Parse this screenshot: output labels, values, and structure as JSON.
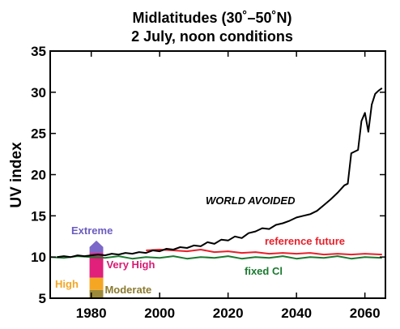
{
  "chart_data": {
    "type": "line",
    "title": "Midlatitudes (30˚–50˚N)",
    "subtitle": "2 July, noon conditions",
    "xlabel": "",
    "ylabel": "UV index",
    "xlim": [
      1968,
      2066
    ],
    "ylim": [
      5,
      35
    ],
    "xticks": [
      1980,
      2000,
      2020,
      2040,
      2060
    ],
    "yticks": [
      5,
      10,
      15,
      20,
      25,
      30,
      35
    ],
    "grid": false,
    "series": [
      {
        "name": "WORLD AVOIDED",
        "color": "#000000",
        "x": [
          1970,
          1972,
          1974,
          1976,
          1978,
          1980,
          1982,
          1984,
          1986,
          1988,
          1990,
          1992,
          1994,
          1996,
          1998,
          2000,
          2002,
          2004,
          2006,
          2008,
          2010,
          2012,
          2014,
          2016,
          2018,
          2020,
          2022,
          2024,
          2026,
          2028,
          2030,
          2032,
          2034,
          2036,
          2038,
          2040,
          2042,
          2044,
          2046,
          2048,
          2050,
          2052,
          2054,
          2055,
          2056,
          2058,
          2059,
          2060,
          2061,
          2062,
          2063,
          2064,
          2065
        ],
        "y": [
          10.0,
          10.1,
          10.0,
          10.2,
          10.1,
          10.2,
          10.3,
          10.2,
          10.4,
          10.3,
          10.5,
          10.4,
          10.6,
          10.5,
          10.8,
          10.7,
          11.0,
          10.9,
          11.2,
          11.1,
          11.4,
          11.3,
          11.8,
          11.6,
          12.1,
          12.0,
          12.5,
          12.3,
          12.9,
          13.1,
          13.5,
          13.4,
          13.9,
          14.1,
          14.4,
          14.8,
          15.0,
          15.2,
          15.6,
          16.3,
          17.0,
          17.8,
          18.7,
          18.9,
          22.6,
          23.0,
          26.5,
          27.5,
          25.2,
          28.5,
          29.8,
          30.2,
          30.5
        ]
      },
      {
        "name": "reference future",
        "color": "#e8202a",
        "x": [
          1996,
          2000,
          2004,
          2008,
          2012,
          2016,
          2020,
          2024,
          2028,
          2032,
          2036,
          2040,
          2044,
          2048,
          2052,
          2056,
          2060,
          2065
        ],
        "y": [
          10.8,
          10.9,
          10.8,
          10.7,
          10.9,
          10.6,
          10.7,
          10.5,
          10.6,
          10.4,
          10.5,
          10.4,
          10.5,
          10.3,
          10.4,
          10.3,
          10.4,
          10.3
        ]
      },
      {
        "name": "fixed Cl",
        "color": "#1a7a2e",
        "x": [
          1968,
          1972,
          1976,
          1980,
          1984,
          1988,
          1992,
          1996,
          2000,
          2004,
          2008,
          2012,
          2016,
          2020,
          2024,
          2028,
          2032,
          2036,
          2040,
          2044,
          2048,
          2052,
          2056,
          2060,
          2065
        ],
        "y": [
          10.0,
          9.9,
          10.1,
          10.0,
          9.9,
          10.1,
          9.8,
          10.0,
          9.9,
          10.1,
          9.8,
          10.0,
          9.9,
          10.1,
          9.8,
          10.0,
          9.9,
          10.1,
          9.8,
          10.0,
          9.9,
          10.1,
          9.8,
          10.0,
          9.9
        ]
      }
    ],
    "uv_categories": [
      {
        "name": "Moderate",
        "from": 5,
        "to": 6,
        "color": "#9c8a3a",
        "label_color": "#8a7a2e"
      },
      {
        "name": "High",
        "from": 6,
        "to": 7.5,
        "color": "#f5a623",
        "label_color": "#f5a623"
      },
      {
        "name": "Very High",
        "from": 7.5,
        "to": 10.5,
        "color": "#e0207a",
        "label_color": "#d81b73"
      },
      {
        "name": "Extreme",
        "from": 10.5,
        "to": 12,
        "color": "#7b68c8",
        "label_color": "#6b5cc0"
      }
    ],
    "category_bar_x": [
      1979.5,
      1983.5
    ]
  }
}
